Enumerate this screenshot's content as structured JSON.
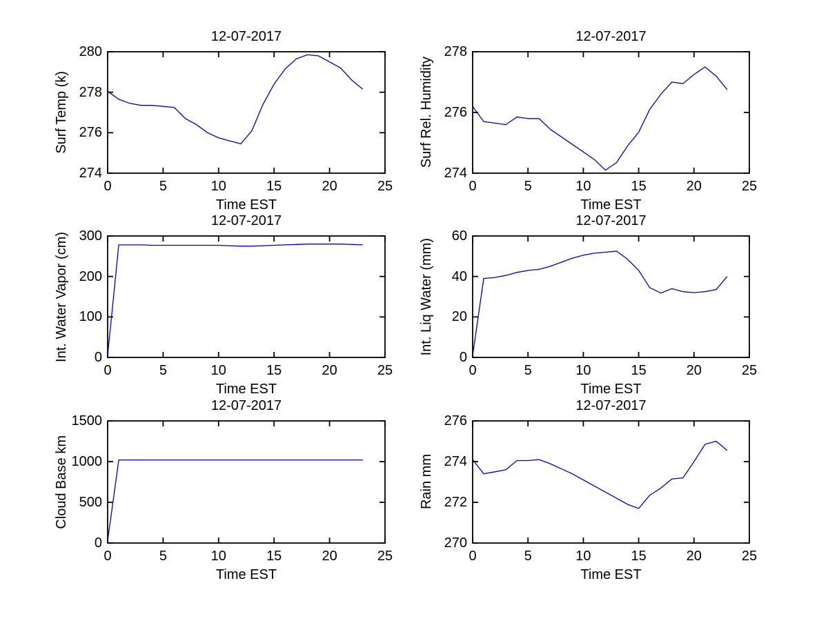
{
  "figure": {
    "background": "#ffffff",
    "axes_color": "#000000",
    "line_color": "#0000B0",
    "date": "12-07-2017"
  },
  "chart_data": [
    {
      "type": "line",
      "title": "12-07-2017",
      "xlabel": "Time EST",
      "ylabel": "Surf Temp (k)",
      "xlim": [
        0,
        25
      ],
      "ylim": [
        274,
        280
      ],
      "xticks": [
        0,
        5,
        10,
        15,
        20,
        25
      ],
      "yticks": [
        274,
        276,
        278,
        280
      ],
      "grid": false,
      "x": [
        0,
        1,
        2,
        3,
        4,
        5,
        6,
        7,
        8,
        9,
        10,
        11,
        12,
        13,
        14,
        15,
        16,
        17,
        18,
        19,
        20,
        21,
        22,
        23
      ],
      "values": [
        278.05,
        277.65,
        277.45,
        277.35,
        277.35,
        277.3,
        277.25,
        276.7,
        276.4,
        276.0,
        275.75,
        275.6,
        275.45,
        276.1,
        277.4,
        278.4,
        279.15,
        279.65,
        279.85,
        279.8,
        279.5,
        279.2,
        278.6,
        278.15
      ]
    },
    {
      "type": "line",
      "title": "12-07-2017",
      "xlabel": "Time EST",
      "ylabel": "Surf Rel. Humidity",
      "xlim": [
        0,
        25
      ],
      "ylim": [
        274,
        278
      ],
      "xticks": [
        0,
        5,
        10,
        15,
        20,
        25
      ],
      "yticks": [
        274,
        276,
        278
      ],
      "grid": false,
      "x": [
        0,
        1,
        2,
        3,
        4,
        5,
        6,
        7,
        8,
        9,
        10,
        11,
        12,
        13,
        14,
        15,
        16,
        17,
        18,
        19,
        20,
        21,
        22,
        23
      ],
      "values": [
        276.2,
        275.7,
        275.65,
        275.6,
        275.85,
        275.8,
        275.8,
        275.45,
        275.2,
        274.95,
        274.7,
        274.45,
        274.1,
        274.35,
        274.9,
        275.35,
        276.1,
        276.6,
        277.0,
        276.95,
        277.25,
        277.5,
        277.2,
        276.75
      ]
    },
    {
      "type": "line",
      "title": "12-07-2017",
      "xlabel": "Time EST",
      "ylabel": "Int. Water Vapor (cm)",
      "xlim": [
        0,
        25
      ],
      "ylim": [
        0,
        300
      ],
      "xticks": [
        0,
        5,
        10,
        15,
        20,
        25
      ],
      "yticks": [
        0,
        100,
        200,
        300
      ],
      "grid": false,
      "x": [
        0,
        1,
        2,
        3,
        4,
        5,
        6,
        7,
        8,
        9,
        10,
        11,
        12,
        13,
        14,
        15,
        16,
        17,
        18,
        19,
        20,
        21,
        22,
        23
      ],
      "values": [
        5,
        278,
        278,
        278,
        277,
        277,
        277,
        277,
        277,
        277,
        277,
        276,
        275,
        275,
        276,
        277,
        278,
        279,
        280,
        280,
        280,
        280,
        279,
        278
      ]
    },
    {
      "type": "line",
      "title": "12-07-2017",
      "xlabel": "Time EST",
      "ylabel": "Int. Liq Water (mm)",
      "xlim": [
        0,
        25
      ],
      "ylim": [
        0,
        60
      ],
      "xticks": [
        0,
        5,
        10,
        15,
        20,
        25
      ],
      "yticks": [
        0,
        20,
        40,
        60
      ],
      "grid": false,
      "x": [
        0,
        1,
        2,
        3,
        4,
        5,
        6,
        7,
        8,
        9,
        10,
        11,
        12,
        13,
        14,
        15,
        16,
        17,
        18,
        19,
        20,
        21,
        22,
        23
      ],
      "values": [
        1,
        39,
        39.5,
        40.5,
        42,
        43,
        43.5,
        45,
        47,
        49,
        50.5,
        51.5,
        52,
        52.5,
        48.5,
        43,
        34.5,
        31.8,
        34,
        32.5,
        32,
        32.5,
        33.5,
        40
      ]
    },
    {
      "type": "line",
      "title": "12-07-2017",
      "xlabel": "Time EST",
      "ylabel": "Cloud Base km",
      "xlim": [
        0,
        25
      ],
      "ylim": [
        0,
        1500
      ],
      "xticks": [
        0,
        5,
        10,
        15,
        20,
        25
      ],
      "yticks": [
        0,
        500,
        1000,
        1500
      ],
      "grid": false,
      "x": [
        0,
        1,
        2,
        3,
        4,
        5,
        6,
        7,
        8,
        9,
        10,
        11,
        12,
        13,
        14,
        15,
        16,
        17,
        18,
        19,
        20,
        21,
        22,
        23
      ],
      "values": [
        30,
        1020,
        1020,
        1020,
        1020,
        1020,
        1020,
        1020,
        1020,
        1020,
        1020,
        1020,
        1020,
        1020,
        1020,
        1020,
        1020,
        1020,
        1020,
        1020,
        1020,
        1020,
        1020,
        1020
      ]
    },
    {
      "type": "line",
      "title": "12-07-2017",
      "xlabel": "Time EST",
      "ylabel": "Rain mm",
      "xlim": [
        0,
        25
      ],
      "ylim": [
        270,
        276
      ],
      "xticks": [
        0,
        5,
        10,
        15,
        20,
        25
      ],
      "yticks": [
        270,
        272,
        274,
        276
      ],
      "grid": false,
      "x": [
        0,
        1,
        2,
        3,
        4,
        5,
        6,
        7,
        8,
        9,
        10,
        11,
        12,
        13,
        14,
        15,
        16,
        17,
        18,
        19,
        20,
        21,
        22,
        23
      ],
      "values": [
        274.1,
        273.4,
        273.5,
        273.6,
        274.05,
        274.05,
        274.1,
        273.9,
        273.65,
        273.4,
        273.1,
        272.8,
        272.5,
        272.2,
        271.9,
        271.7,
        272.35,
        272.7,
        273.15,
        273.2,
        274.0,
        274.85,
        275.0,
        274.55
      ]
    }
  ]
}
